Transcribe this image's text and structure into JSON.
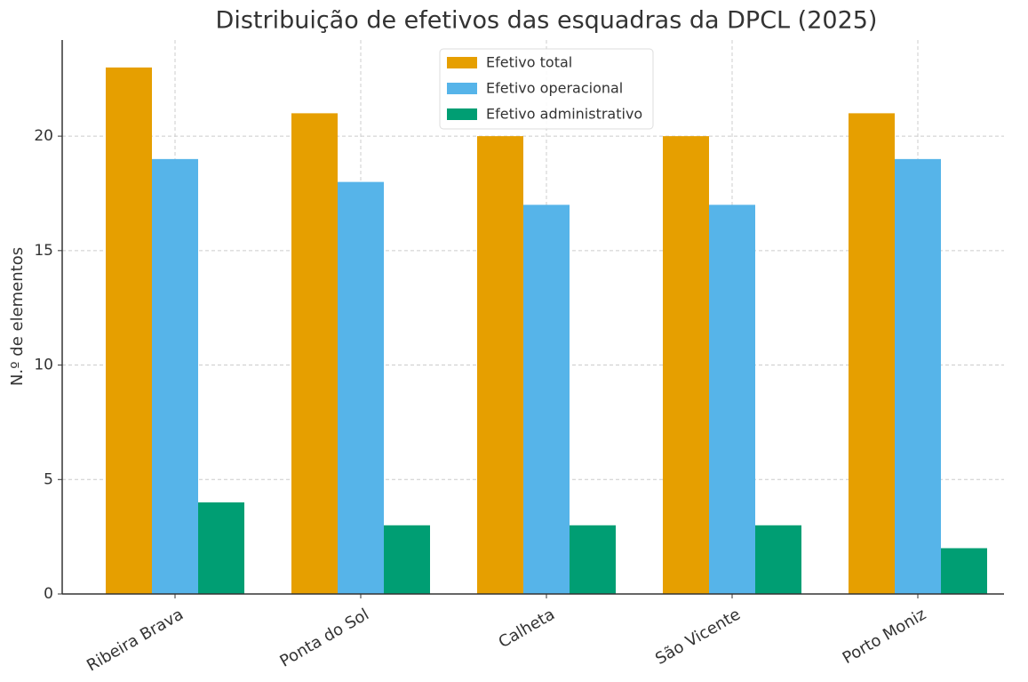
{
  "chart_data": {
    "type": "bar",
    "title": "Distribuição de efetivos das esquadras da DPCL (2025)",
    "y_label": "N.º de elementos",
    "categories": [
      "Ribeira Brava",
      "Ponta do Sol",
      "Calheta",
      "São Vicente",
      "Porto Moniz"
    ],
    "series": [
      {
        "name": "Efetivo total",
        "color": "#e69f00",
        "values": [
          23,
          21,
          20,
          20,
          21
        ]
      },
      {
        "name": "Efetivo operacional",
        "color": "#56b4e9",
        "values": [
          19,
          18,
          17,
          17,
          19
        ]
      },
      {
        "name": "Efetivo administrativo",
        "color": "#009e73",
        "values": [
          4,
          3,
          3,
          3,
          2
        ]
      }
    ],
    "ylim": [
      0,
      24.2
    ],
    "yticks": [
      0,
      5,
      10,
      15,
      20
    ],
    "grid": true,
    "legend": "upper center"
  }
}
